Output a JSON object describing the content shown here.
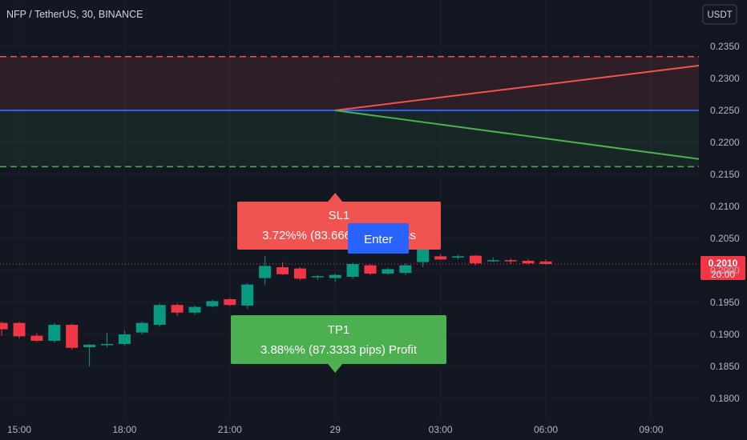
{
  "header": {
    "symbol_title": "NFP / TetherUS, 30, BINANCE",
    "currency_button": "USDT"
  },
  "price_tag": {
    "price": "0.2010",
    "countdown": "20:00"
  },
  "colors": {
    "background": "#131722",
    "grid": "#1e222d",
    "up_candle": "#089981",
    "down_candle": "#f23645",
    "stop_line": "#f05350",
    "target_line": "#4caf50",
    "entry_line": "#2962ff",
    "sl_label_bg": "#f05350",
    "tp_label_bg": "#4caf50",
    "enter_label_bg": "#2962ff"
  },
  "labels": {
    "sl": {
      "title": "SL1",
      "line": "3.72%% (83.6667 pips) Loss"
    },
    "tp": {
      "title": "TP1",
      "line": "3.88%% (87.3333 pips) Profit"
    },
    "enter": "Enter"
  },
  "chart_data": {
    "type": "candlestick",
    "title": "NFP / TetherUS, 30, BINANCE",
    "x_ticks": [
      "15:00",
      "18:00",
      "21:00",
      "29",
      "03:00",
      "06:00",
      "09:00"
    ],
    "y_ticks": [
      "0.1800",
      "0.1850",
      "0.1900",
      "0.1950",
      "0.2000",
      "0.2050",
      "0.2100",
      "0.2150",
      "0.2200",
      "0.2250",
      "0.2300",
      "0.2350"
    ],
    "ylim": [
      0.1765,
      0.2375
    ],
    "grid": true,
    "levels": {
      "stop_loss": 0.2334,
      "entry": 0.225,
      "take_profit": 0.2162,
      "last_price": 0.201
    },
    "projection": {
      "start_time": "29 00:00",
      "stop_line_end": 0.232,
      "target_line_end": 0.2174
    },
    "candles": [
      {
        "t": "14:00",
        "o": 0.1918,
        "h": 0.1935,
        "l": 0.1905,
        "c": 0.1928
      },
      {
        "t": "14:30",
        "o": 0.1918,
        "h": 0.192,
        "l": 0.1898,
        "c": 0.1908
      },
      {
        "t": "15:00",
        "o": 0.1918,
        "h": 0.192,
        "l": 0.1894,
        "c": 0.1897
      },
      {
        "t": "15:30",
        "o": 0.1898,
        "h": 0.1902,
        "l": 0.1888,
        "c": 0.189
      },
      {
        "t": "16:00",
        "o": 0.189,
        "h": 0.1918,
        "l": 0.1887,
        "c": 0.1915
      },
      {
        "t": "16:30",
        "o": 0.1915,
        "h": 0.1917,
        "l": 0.1876,
        "c": 0.1879
      },
      {
        "t": "17:00",
        "o": 0.188,
        "h": 0.1885,
        "l": 0.185,
        "c": 0.1884
      },
      {
        "t": "17:30",
        "o": 0.1885,
        "h": 0.1903,
        "l": 0.188,
        "c": 0.1885
      },
      {
        "t": "18:00",
        "o": 0.1885,
        "h": 0.1906,
        "l": 0.1882,
        "c": 0.19
      },
      {
        "t": "18:30",
        "o": 0.1903,
        "h": 0.192,
        "l": 0.19,
        "c": 0.1918
      },
      {
        "t": "19:00",
        "o": 0.1915,
        "h": 0.1948,
        "l": 0.1912,
        "c": 0.1946
      },
      {
        "t": "19:30",
        "o": 0.1946,
        "h": 0.1948,
        "l": 0.1929,
        "c": 0.1934
      },
      {
        "t": "20:00",
        "o": 0.1934,
        "h": 0.1945,
        "l": 0.1931,
        "c": 0.1943
      },
      {
        "t": "20:30",
        "o": 0.1944,
        "h": 0.1954,
        "l": 0.1942,
        "c": 0.1952
      },
      {
        "t": "21:00",
        "o": 0.1955,
        "h": 0.1957,
        "l": 0.1944,
        "c": 0.1946
      },
      {
        "t": "21:30",
        "o": 0.1945,
        "h": 0.198,
        "l": 0.194,
        "c": 0.1978
      },
      {
        "t": "22:00",
        "o": 0.1988,
        "h": 0.2023,
        "l": 0.1978,
        "c": 0.2007
      },
      {
        "t": "22:30",
        "o": 0.2005,
        "h": 0.2013,
        "l": 0.1993,
        "c": 0.1994
      },
      {
        "t": "23:00",
        "o": 0.2003,
        "h": 0.2005,
        "l": 0.1984,
        "c": 0.1987
      },
      {
        "t": "23:30",
        "o": 0.199,
        "h": 0.1993,
        "l": 0.1985,
        "c": 0.1991
      },
      {
        "t": "00:00",
        "o": 0.1988,
        "h": 0.1995,
        "l": 0.1982,
        "c": 0.1993
      },
      {
        "t": "00:30",
        "o": 0.199,
        "h": 0.2012,
        "l": 0.1987,
        "c": 0.201
      },
      {
        "t": "01:00",
        "o": 0.2008,
        "h": 0.201,
        "l": 0.1993,
        "c": 0.1995
      },
      {
        "t": "01:30",
        "o": 0.1995,
        "h": 0.2004,
        "l": 0.1993,
        "c": 0.2002
      },
      {
        "t": "02:00",
        "o": 0.1996,
        "h": 0.2011,
        "l": 0.1993,
        "c": 0.2008
      },
      {
        "t": "02:30",
        "o": 0.2013,
        "h": 0.2042,
        "l": 0.2005,
        "c": 0.204
      },
      {
        "t": "03:00",
        "o": 0.2022,
        "h": 0.2025,
        "l": 0.2017,
        "c": 0.2017
      },
      {
        "t": "03:30",
        "o": 0.202,
        "h": 0.2024,
        "l": 0.2017,
        "c": 0.2022
      },
      {
        "t": "04:00",
        "o": 0.2023,
        "h": 0.2024,
        "l": 0.2008,
        "c": 0.2011
      },
      {
        "t": "04:30",
        "o": 0.2015,
        "h": 0.202,
        "l": 0.2013,
        "c": 0.2016
      },
      {
        "t": "05:00",
        "o": 0.2016,
        "h": 0.2019,
        "l": 0.201,
        "c": 0.2015
      },
      {
        "t": "05:30",
        "o": 0.2015,
        "h": 0.2018,
        "l": 0.2009,
        "c": 0.2011
      },
      {
        "t": "06:00",
        "o": 0.2014,
        "h": 0.2017,
        "l": 0.2009,
        "c": 0.201
      }
    ]
  }
}
